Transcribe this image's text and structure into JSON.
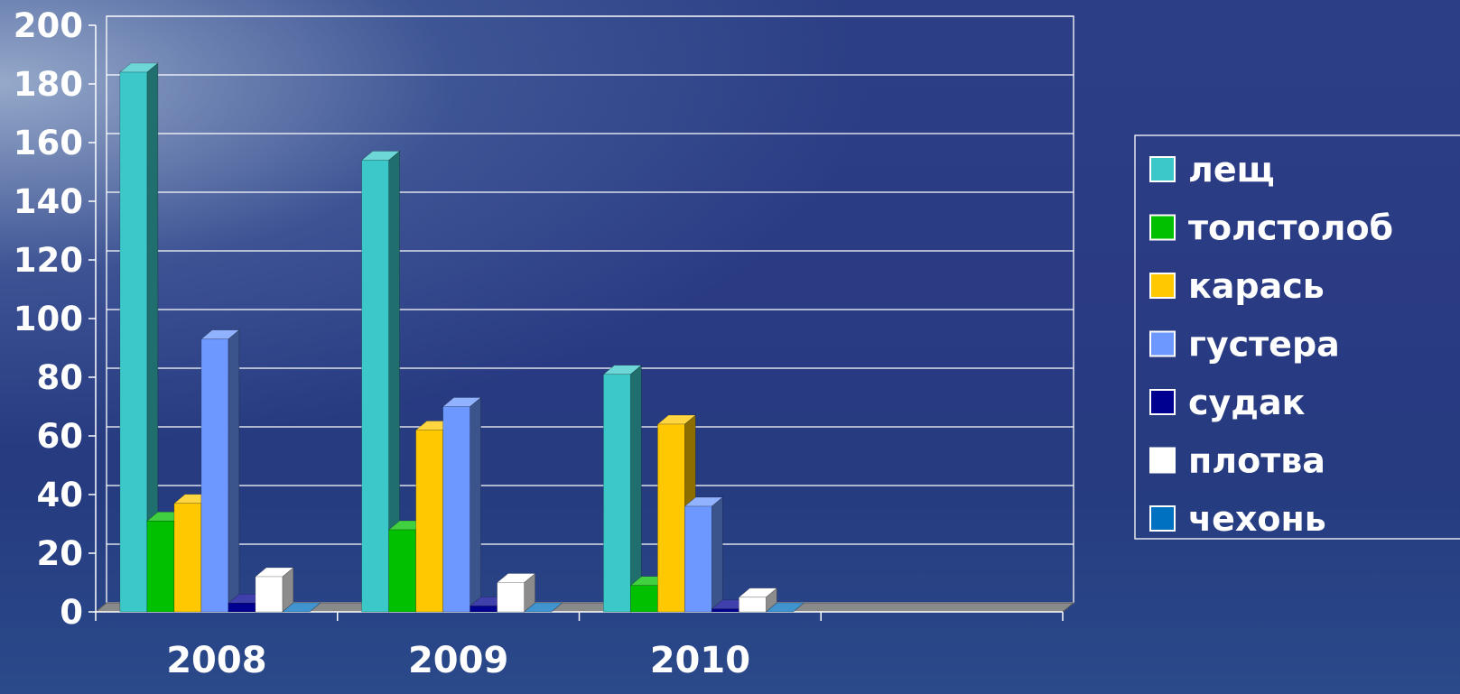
{
  "chart_data": {
    "type": "bar",
    "categories": [
      "2008",
      "2009",
      "2010",
      ""
    ],
    "ylim": [
      0,
      200
    ],
    "yticks": [
      0,
      20,
      40,
      60,
      80,
      100,
      120,
      140,
      160,
      180,
      200
    ],
    "grid": true,
    "legend_position": "right",
    "series": [
      {
        "name": "лещ",
        "color": "#3cc8c8",
        "values": [
          184,
          154,
          81,
          null
        ]
      },
      {
        "name": "толстолоб",
        "color": "#00c000",
        "values": [
          31,
          28,
          9,
          null
        ]
      },
      {
        "name": "карась",
        "color": "#ffc800",
        "values": [
          37,
          62,
          64,
          null
        ]
      },
      {
        "name": "густера",
        "color": "#6c98ff",
        "values": [
          93,
          70,
          36,
          null
        ]
      },
      {
        "name": "судак",
        "color": "#000090",
        "values": [
          3,
          2,
          1,
          null
        ]
      },
      {
        "name": "плотва",
        "color": "#ffffff",
        "values": [
          12,
          10,
          5,
          null
        ]
      },
      {
        "name": "чехонь",
        "color": "#0070c0",
        "values": [
          0,
          0,
          0,
          null
        ]
      }
    ]
  }
}
